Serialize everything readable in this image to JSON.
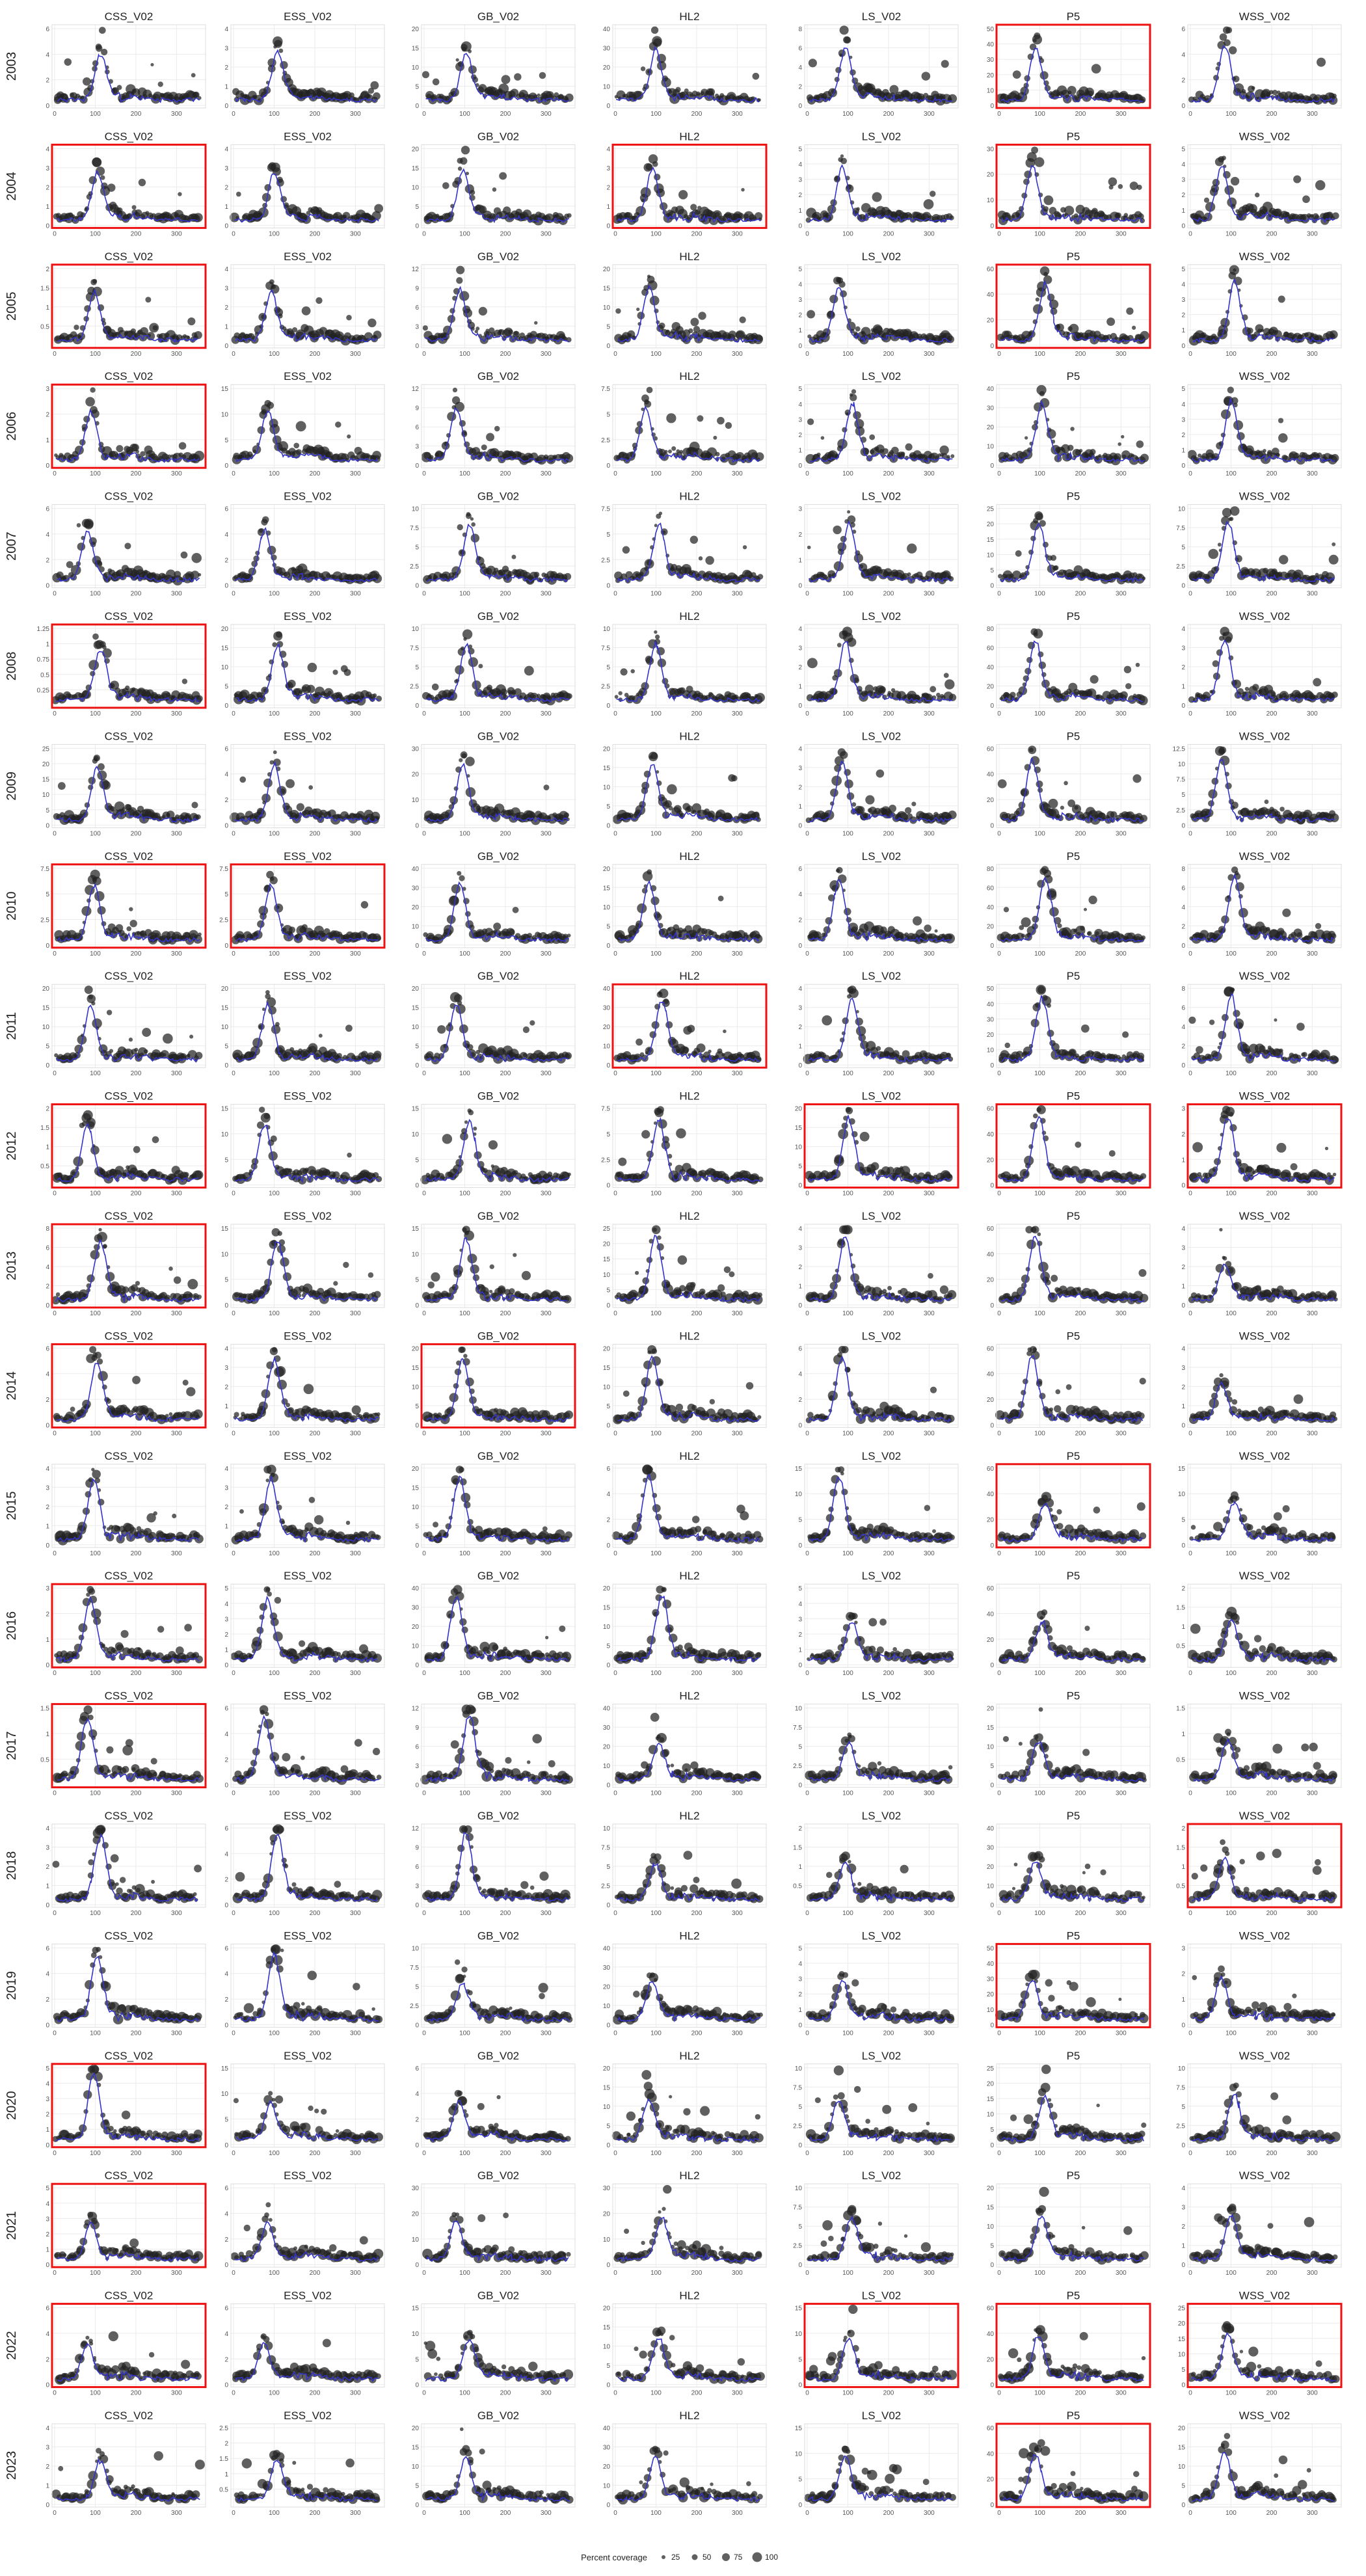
{
  "chart_data": {
    "type": "scatter",
    "layout": "facet-grid",
    "row_labels": [
      "2003",
      "2004",
      "2005",
      "2006",
      "2007",
      "2008",
      "2009",
      "2010",
      "2011",
      "2012",
      "2013",
      "2014",
      "2015",
      "2016",
      "2017",
      "2018",
      "2019",
      "2020",
      "2021",
      "2022",
      "2023"
    ],
    "col_labels": [
      "CSS_V02",
      "ESS_V02",
      "GB_V02",
      "HL2",
      "LS_V02",
      "P5",
      "WSS_V02"
    ],
    "xlim": [
      0,
      365
    ],
    "x_ticks": [
      0,
      100,
      200,
      300
    ],
    "grid": true,
    "legend": {
      "title": "Percent coverage",
      "placement": "bottom",
      "entries": [
        "25",
        "50",
        "75",
        "100"
      ]
    },
    "colors": {
      "points": "#222222",
      "trend": "#3333cc",
      "highlight_border": "#ee1111",
      "grid": "#ebebeb"
    },
    "ymax": [
      [
        6,
        4,
        20,
        40,
        8,
        50,
        6
      ],
      [
        4,
        4,
        20,
        4,
        5,
        30,
        5
      ],
      [
        2,
        4,
        12,
        20,
        5,
        60,
        5
      ],
      [
        3,
        15,
        12,
        7.5,
        5,
        40,
        5
      ],
      [
        6,
        6,
        10,
        7.5,
        3,
        25,
        10
      ],
      [
        1.25,
        20,
        10,
        10,
        4,
        80,
        4
      ],
      [
        25,
        6,
        30,
        20,
        4,
        60,
        12.5
      ],
      [
        7.5,
        7.5,
        40,
        20,
        6,
        80,
        8
      ],
      [
        20,
        20,
        20,
        40,
        4,
        50,
        8
      ],
      [
        2,
        15,
        15,
        7.5,
        20,
        60,
        3
      ],
      [
        8,
        15,
        15,
        25,
        4,
        60,
        4
      ],
      [
        6,
        4,
        20,
        20,
        6,
        60,
        4
      ],
      [
        4,
        4,
        20,
        6,
        15,
        60,
        15
      ],
      [
        3,
        5,
        40,
        20,
        5,
        60,
        2
      ],
      [
        1.5,
        6,
        12,
        40,
        10,
        20,
        1.5
      ],
      [
        4,
        6,
        12,
        10,
        2,
        40,
        2
      ],
      [
        6,
        6,
        10,
        40,
        5,
        50,
        3
      ],
      [
        5,
        15,
        6,
        20,
        10,
        25,
        10
      ],
      [
        5,
        6,
        30,
        30,
        10,
        20,
        4
      ],
      [
        6,
        6,
        15,
        20,
        15,
        60,
        25
      ],
      [
        4,
        2.5,
        20,
        40,
        15,
        60,
        20
      ]
    ],
    "highlighted": [
      [
        0,
        5
      ],
      [
        1,
        0
      ],
      [
        1,
        3
      ],
      [
        1,
        5
      ],
      [
        2,
        0
      ],
      [
        2,
        5
      ],
      [
        3,
        0
      ],
      [
        5,
        0
      ],
      [
        7,
        0
      ],
      [
        7,
        1
      ],
      [
        8,
        3
      ],
      [
        9,
        0
      ],
      [
        9,
        4
      ],
      [
        9,
        5
      ],
      [
        9,
        6
      ],
      [
        10,
        0
      ],
      [
        11,
        0
      ],
      [
        11,
        2
      ],
      [
        12,
        5
      ],
      [
        13,
        0
      ],
      [
        14,
        0
      ],
      [
        15,
        6
      ],
      [
        16,
        5
      ],
      [
        17,
        0
      ],
      [
        18,
        0
      ],
      [
        19,
        0
      ],
      [
        19,
        4
      ],
      [
        19,
        5
      ],
      [
        19,
        6
      ],
      [
        20,
        5
      ]
    ],
    "peak_day_approx": 95
  }
}
